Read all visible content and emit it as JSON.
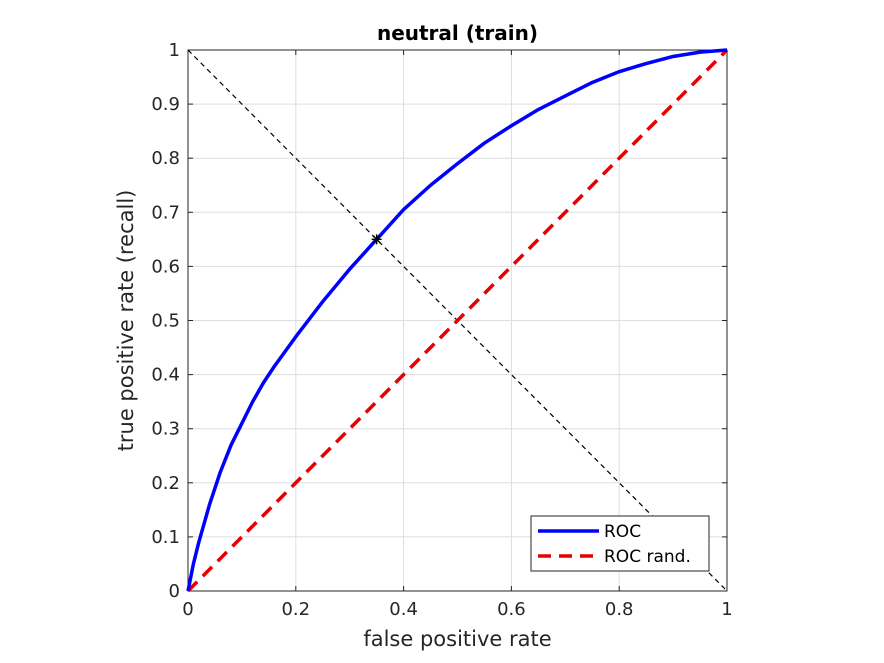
{
  "chart_data": {
    "type": "line",
    "title": "neutral (train)",
    "xlabel": "false positive rate",
    "ylabel": "true positive rate (recall)",
    "xlim": [
      0,
      1
    ],
    "ylim": [
      0,
      1
    ],
    "grid": true,
    "legend_position": "bottom-right",
    "x_ticks": [
      {
        "value": 0,
        "label": "0"
      },
      {
        "value": 0.2,
        "label": "0.2"
      },
      {
        "value": 0.4,
        "label": "0.4"
      },
      {
        "value": 0.6,
        "label": "0.6"
      },
      {
        "value": 0.8,
        "label": "0.8"
      },
      {
        "value": 1,
        "label": "1"
      }
    ],
    "y_ticks": [
      {
        "value": 0,
        "label": "0"
      },
      {
        "value": 0.1,
        "label": "0.1"
      },
      {
        "value": 0.2,
        "label": "0.2"
      },
      {
        "value": 0.3,
        "label": "0.3"
      },
      {
        "value": 0.4,
        "label": "0.4"
      },
      {
        "value": 0.5,
        "label": "0.5"
      },
      {
        "value": 0.6,
        "label": "0.6"
      },
      {
        "value": 0.7,
        "label": "0.7"
      },
      {
        "value": 0.8,
        "label": "0.8"
      },
      {
        "value": 0.9,
        "label": "0.9"
      },
      {
        "value": 1,
        "label": "1"
      }
    ],
    "series": [
      {
        "name": "ROC",
        "color": "#0000ff",
        "style": "solid",
        "x": [
          0,
          0.01,
          0.02,
          0.04,
          0.06,
          0.08,
          0.1,
          0.12,
          0.14,
          0.16,
          0.2,
          0.25,
          0.3,
          0.35,
          0.4,
          0.45,
          0.5,
          0.55,
          0.6,
          0.65,
          0.7,
          0.75,
          0.8,
          0.85,
          0.9,
          0.95,
          1.0
        ],
        "y": [
          0,
          0.05,
          0.09,
          0.16,
          0.22,
          0.27,
          0.31,
          0.35,
          0.385,
          0.415,
          0.47,
          0.535,
          0.595,
          0.65,
          0.705,
          0.75,
          0.79,
          0.828,
          0.86,
          0.89,
          0.915,
          0.94,
          0.96,
          0.975,
          0.988,
          0.996,
          1.0
        ]
      },
      {
        "name": "ROC rand.",
        "color": "#e60000",
        "style": "dashed",
        "x": [
          0,
          1
        ],
        "y": [
          0,
          1
        ]
      }
    ],
    "reference_line": {
      "color": "#000000",
      "style": "dashed",
      "x": [
        0,
        1
      ],
      "y": [
        1,
        0
      ]
    },
    "marker": {
      "x": 0.35,
      "y": 0.65,
      "symbol": "*",
      "color": "#000000"
    }
  }
}
